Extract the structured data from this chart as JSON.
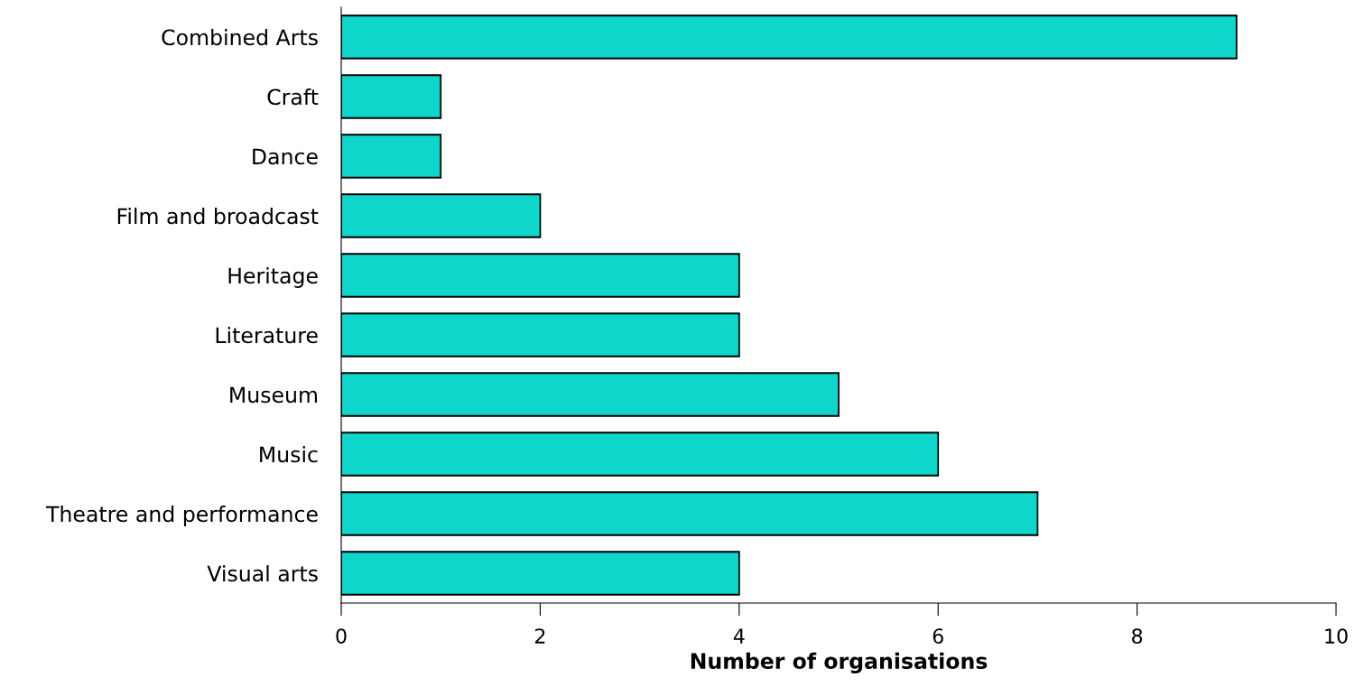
{
  "chart_data": {
    "type": "bar",
    "orientation": "horizontal",
    "xlabel": "Number of organisations",
    "categories": [
      "Combined Arts",
      "Craft",
      "Dance",
      "Film and broadcast",
      "Heritage",
      "Literature",
      "Museum",
      "Music",
      "Theatre and performance",
      "Visual arts"
    ],
    "values": [
      9,
      1,
      1,
      2,
      4,
      4,
      5,
      6,
      7,
      4
    ],
    "color": "#0fd6cb",
    "xlim": [
      0,
      10
    ],
    "xticks": [
      0,
      2,
      4,
      6,
      8,
      10
    ],
    "grid": false,
    "legend": false
  }
}
